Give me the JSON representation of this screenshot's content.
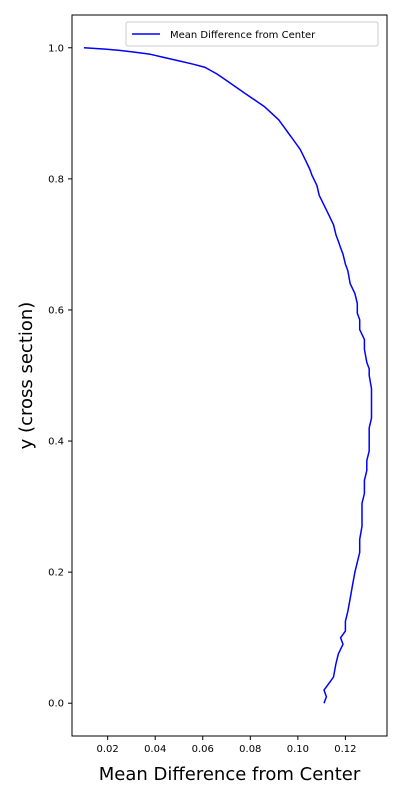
{
  "chart_data": {
    "type": "line",
    "title": "",
    "xlabel": "Mean Difference from Center",
    "ylabel": "y (cross section)",
    "xlim": [
      0.005,
      0.1375
    ],
    "ylim": [
      -0.05,
      1.05
    ],
    "xticks": [
      0.02,
      0.04,
      0.06,
      0.08,
      0.1,
      0.12
    ],
    "xtick_labels": [
      "0.02",
      "0.04",
      "0.06",
      "0.08",
      "0.10",
      "0.12"
    ],
    "yticks": [
      0.0,
      0.2,
      0.4,
      0.6,
      0.8,
      1.0
    ],
    "ytick_labels": [
      "0.0",
      "0.2",
      "0.4",
      "0.6",
      "0.8",
      "1.0"
    ],
    "grid": false,
    "legend": {
      "position": "top-right"
    },
    "series": [
      {
        "name": "Mean Difference from Center",
        "color": "#0000ff",
        "x": [
          0.111,
          0.112,
          0.111,
          0.113,
          0.115,
          0.116,
          0.117,
          0.119,
          0.118,
          0.12,
          0.12,
          0.121,
          0.122,
          0.123,
          0.124,
          0.125,
          0.126,
          0.126,
          0.127,
          0.127,
          0.127,
          0.128,
          0.128,
          0.129,
          0.129,
          0.13,
          0.13,
          0.13,
          0.131,
          0.131,
          0.131,
          0.131,
          0.13,
          0.13,
          0.129,
          0.128,
          0.128,
          0.126,
          0.126,
          0.125,
          0.125,
          0.124,
          0.122,
          0.121,
          0.12,
          0.119,
          0.118,
          0.117,
          0.116,
          0.115,
          0.113,
          0.111,
          0.109,
          0.108,
          0.106,
          0.105,
          0.103,
          0.101,
          0.098,
          0.096,
          0.094,
          0.092,
          0.089,
          0.086,
          0.082,
          0.078,
          0.074,
          0.07,
          0.066,
          0.061,
          0.056,
          0.05,
          0.044,
          0.038,
          0.032,
          0.025,
          0.019,
          0.01
        ],
        "y": [
          0.0,
          0.01,
          0.02,
          0.03,
          0.04,
          0.06,
          0.075,
          0.09,
          0.1,
          0.11,
          0.125,
          0.14,
          0.16,
          0.18,
          0.2,
          0.215,
          0.23,
          0.25,
          0.27,
          0.29,
          0.305,
          0.32,
          0.34,
          0.355,
          0.37,
          0.385,
          0.4,
          0.42,
          0.435,
          0.45,
          0.47,
          0.48,
          0.5,
          0.51,
          0.52,
          0.54,
          0.555,
          0.57,
          0.585,
          0.595,
          0.61,
          0.625,
          0.64,
          0.66,
          0.67,
          0.685,
          0.695,
          0.705,
          0.715,
          0.73,
          0.745,
          0.76,
          0.775,
          0.79,
          0.805,
          0.815,
          0.83,
          0.845,
          0.86,
          0.87,
          0.88,
          0.89,
          0.9,
          0.91,
          0.92,
          0.93,
          0.94,
          0.95,
          0.96,
          0.97,
          0.975,
          0.98,
          0.985,
          0.99,
          0.993,
          0.996,
          0.998,
          1.0
        ]
      }
    ]
  }
}
